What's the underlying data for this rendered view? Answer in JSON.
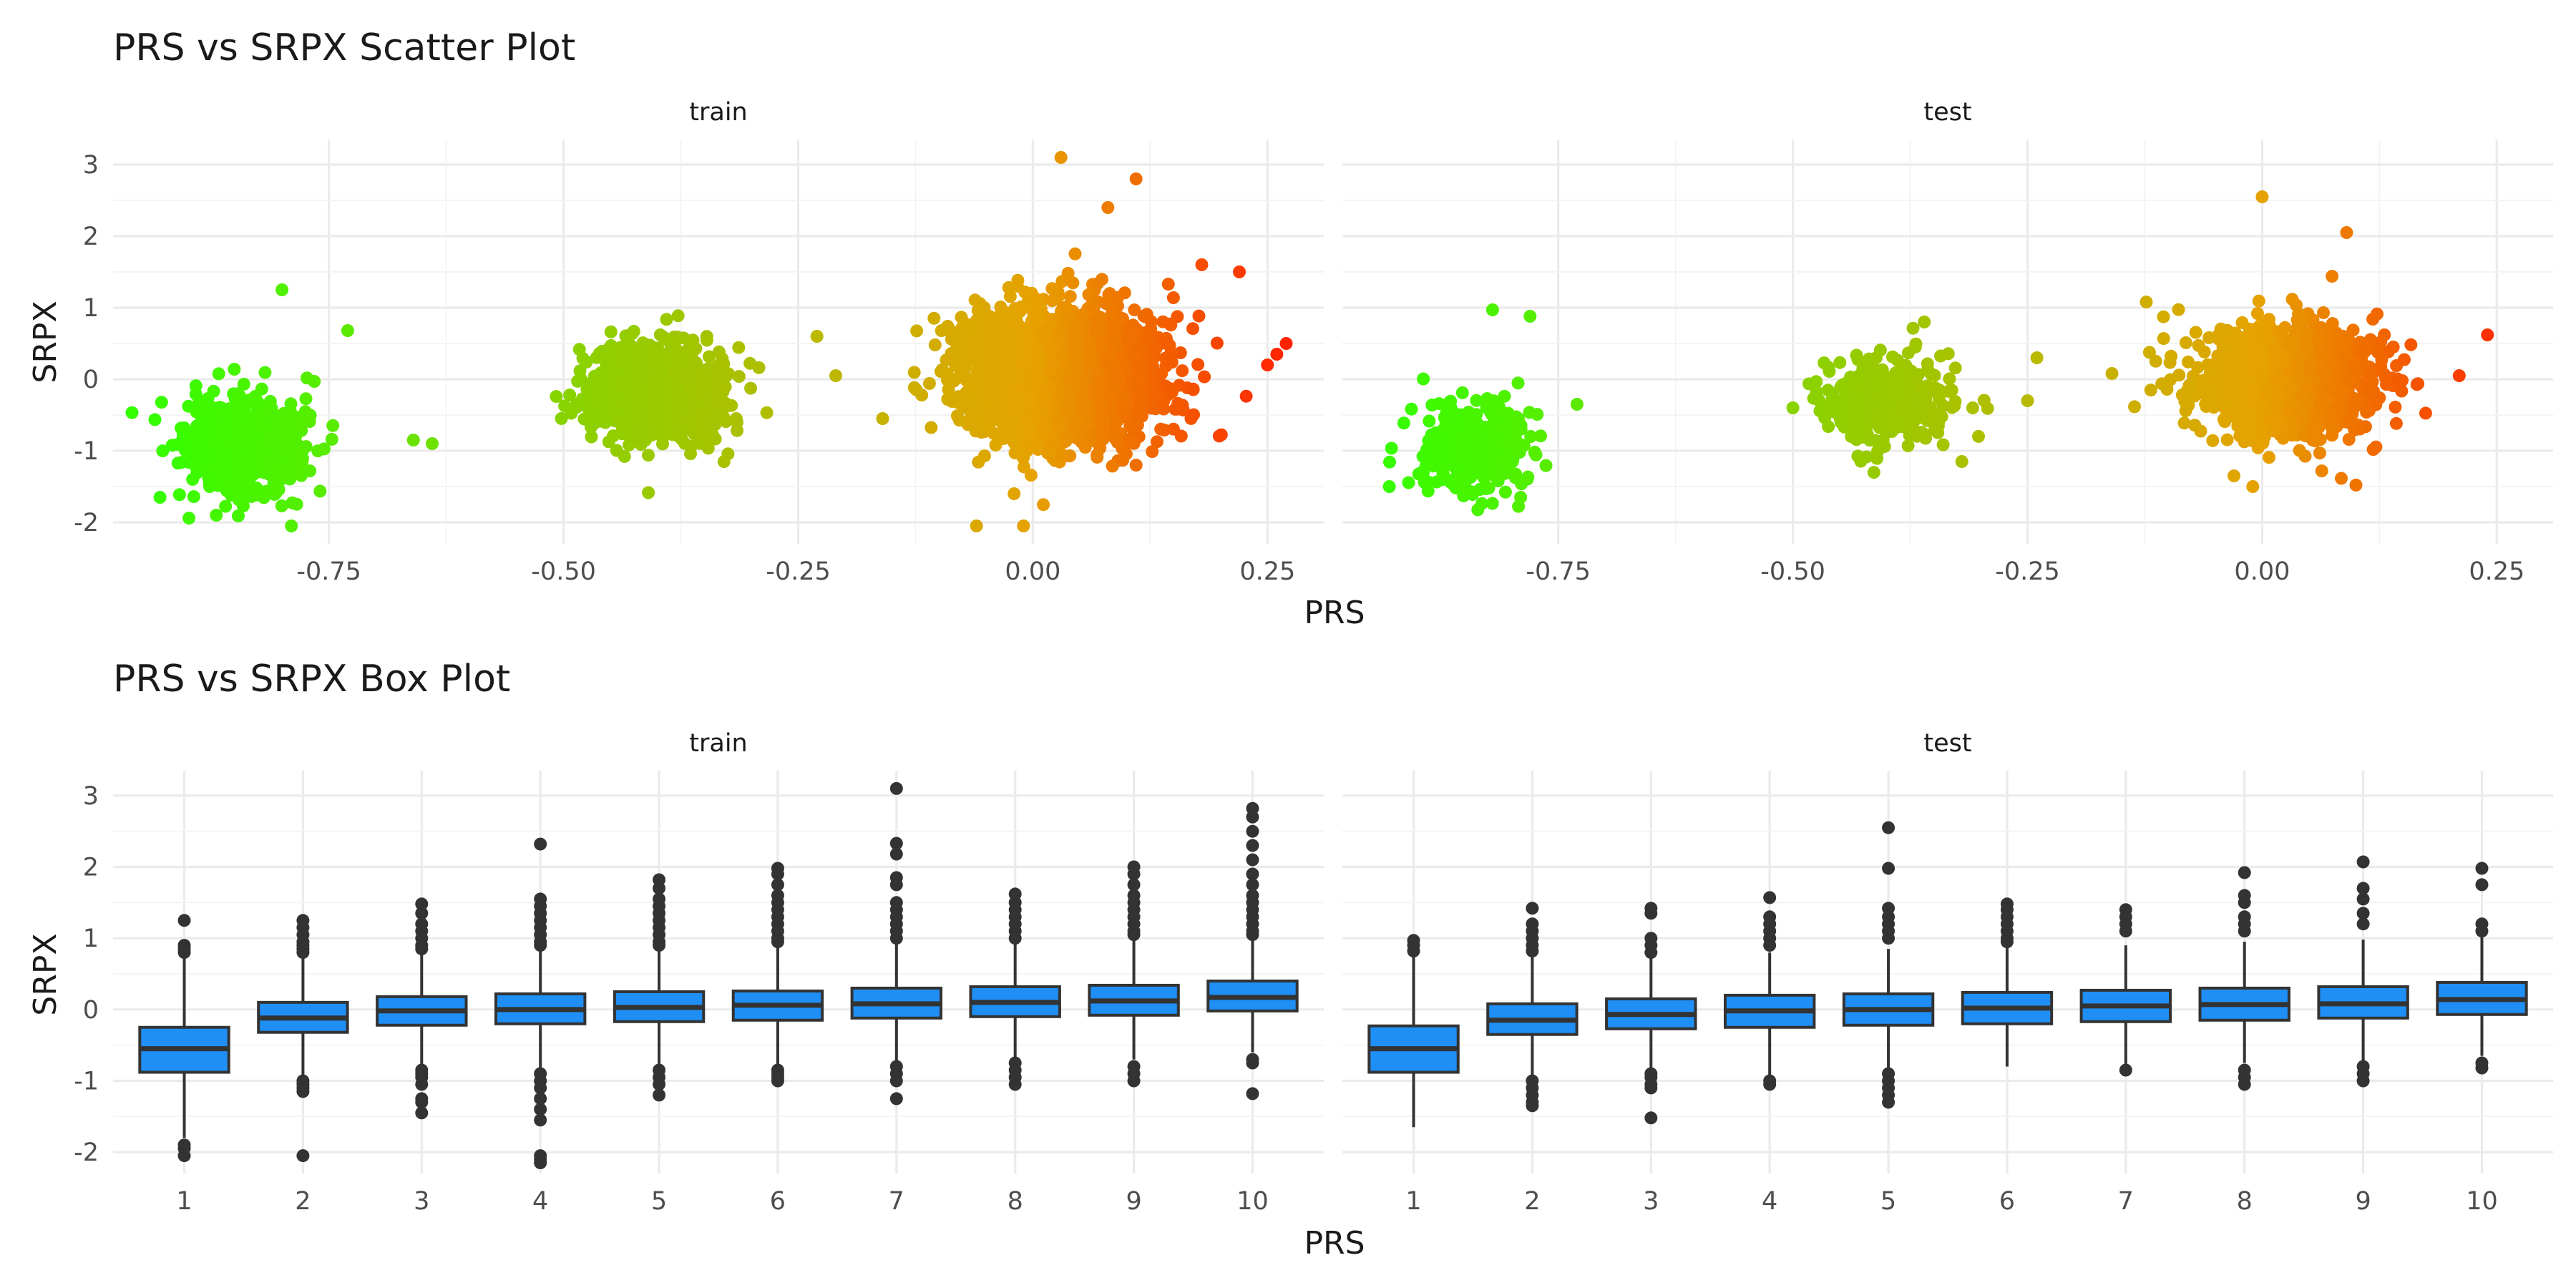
{
  "chart_data": [
    {
      "type": "scatter",
      "title": "PRS vs SRPX Scatter Plot",
      "xlabel": "PRS",
      "ylabel": "SRPX",
      "xlim": [
        -0.98,
        0.31
      ],
      "ylim": [
        -2.3,
        3.35
      ],
      "x_ticks": [
        -0.75,
        -0.5,
        -0.25,
        0.0,
        0.25
      ],
      "x_tick_labels": [
        "-0.75",
        "-0.50",
        "-0.25",
        "0.00",
        "0.25"
      ],
      "y_ticks": [
        -2,
        -1,
        0,
        1,
        2,
        3
      ],
      "y_tick_labels": [
        "-2",
        "-1",
        "0",
        "1",
        "2",
        "3"
      ],
      "grid": true,
      "color_scale": {
        "low": "#33ff00",
        "mid": "#e6a200",
        "high": "#ff2200",
        "note": "points colored by PRS value"
      },
      "panels": [
        {
          "name": "train",
          "clusters": [
            {
              "x_center": -0.84,
              "x_sd": 0.03,
              "y_center": -0.95,
              "y_sd": 0.33,
              "n": 750
            },
            {
              "x_center": -0.4,
              "x_sd": 0.035,
              "y_center": -0.15,
              "y_sd": 0.35,
              "n": 900
            },
            {
              "x_center": 0.03,
              "x_sd": 0.05,
              "y_center": 0.05,
              "y_sd": 0.45,
              "n": 2400
            }
          ],
          "outliers": [
            {
              "x": -0.93,
              "y": -1.65
            },
            {
              "x": -0.8,
              "y": 1.25
            },
            {
              "x": -0.73,
              "y": 0.68
            },
            {
              "x": -0.79,
              "y": -2.05
            },
            {
              "x": -0.87,
              "y": -1.9
            },
            {
              "x": -0.64,
              "y": -0.9
            },
            {
              "x": -0.66,
              "y": -0.85
            },
            {
              "x": -0.23,
              "y": 0.6
            },
            {
              "x": -0.21,
              "y": 0.05
            },
            {
              "x": -0.16,
              "y": -0.55
            },
            {
              "x": 0.03,
              "y": 3.1
            },
            {
              "x": 0.11,
              "y": 2.8
            },
            {
              "x": 0.08,
              "y": 2.4
            },
            {
              "x": 0.18,
              "y": 1.6
            },
            {
              "x": 0.22,
              "y": 1.5
            },
            {
              "x": 0.27,
              "y": 0.5
            },
            {
              "x": 0.26,
              "y": 0.35
            },
            {
              "x": 0.25,
              "y": 0.2
            },
            {
              "x": -0.06,
              "y": -2.05
            },
            {
              "x": -0.01,
              "y": -2.05
            },
            {
              "x": 0.11,
              "y": -1.2
            },
            {
              "x": -0.02,
              "y": -1.6
            }
          ]
        },
        {
          "name": "test",
          "clusters": [
            {
              "x_center": -0.84,
              "x_sd": 0.03,
              "y_center": -0.95,
              "y_sd": 0.32,
              "n": 320
            },
            {
              "x_center": -0.4,
              "x_sd": 0.035,
              "y_center": -0.3,
              "y_sd": 0.28,
              "n": 380
            },
            {
              "x_center": 0.03,
              "x_sd": 0.05,
              "y_center": 0.0,
              "y_sd": 0.4,
              "n": 1100
            }
          ],
          "outliers": [
            {
              "x": -0.82,
              "y": 0.97
            },
            {
              "x": -0.78,
              "y": 0.88
            },
            {
              "x": -0.93,
              "y": -1.5
            },
            {
              "x": -0.79,
              "y": -1.65
            },
            {
              "x": -0.73,
              "y": -0.35
            },
            {
              "x": -0.5,
              "y": -0.4
            },
            {
              "x": -0.24,
              "y": 0.3
            },
            {
              "x": -0.25,
              "y": -0.3
            },
            {
              "x": -0.32,
              "y": -1.15
            },
            {
              "x": -0.36,
              "y": 0.8
            },
            {
              "x": 0.0,
              "y": 2.55
            },
            {
              "x": 0.09,
              "y": 2.05
            },
            {
              "x": -0.16,
              "y": 0.08
            },
            {
              "x": 0.24,
              "y": 0.62
            },
            {
              "x": 0.21,
              "y": 0.05
            },
            {
              "x": -0.03,
              "y": -1.35
            },
            {
              "x": -0.01,
              "y": -1.5
            }
          ]
        }
      ]
    },
    {
      "type": "box",
      "title": "PRS vs SRPX Box Plot",
      "xlabel": "PRS",
      "ylabel": "SRPX",
      "categories": [
        "1",
        "2",
        "3",
        "4",
        "5",
        "6",
        "7",
        "8",
        "9",
        "10"
      ],
      "ylim": [
        -2.3,
        3.35
      ],
      "y_ticks": [
        -2,
        -1,
        0,
        1,
        2,
        3
      ],
      "y_tick_labels": [
        "-2",
        "-1",
        "0",
        "1",
        "2",
        "3"
      ],
      "box_fill": "#1f8ff5",
      "box_edge": "#333333",
      "grid": true,
      "panels": [
        {
          "name": "train",
          "boxes": [
            {
              "q1": -0.88,
              "median": -0.55,
              "q3": -0.25,
              "whisker_low": -1.8,
              "whisker_high": 0.75,
              "outliers": [
                1.25,
                0.9,
                0.85,
                0.8,
                -1.9,
                -1.95,
                -2.05
              ]
            },
            {
              "q1": -0.32,
              "median": -0.12,
              "q3": 0.1,
              "whisker_low": -0.95,
              "whisker_high": 0.72,
              "outliers": [
                1.25,
                1.15,
                1.05,
                0.95,
                0.9,
                0.85,
                0.8,
                -1.0,
                -1.05,
                -1.1,
                -1.15,
                -2.05
              ]
            },
            {
              "q1": -0.22,
              "median": -0.02,
              "q3": 0.18,
              "whisker_low": -0.8,
              "whisker_high": 0.78,
              "outliers": [
                1.48,
                1.35,
                1.2,
                1.1,
                1.0,
                0.9,
                0.85,
                -0.85,
                -0.9,
                -0.95,
                -1.05,
                -1.25,
                -1.3,
                -1.45
              ]
            },
            {
              "q1": -0.2,
              "median": 0.0,
              "q3": 0.22,
              "whisker_low": -0.85,
              "whisker_high": 0.85,
              "outliers": [
                2.32,
                1.55,
                1.45,
                1.35,
                1.25,
                1.15,
                1.05,
                0.95,
                0.9,
                -0.9,
                -1.0,
                -1.1,
                -1.25,
                -1.4,
                -1.55,
                -2.05,
                -2.1,
                -2.15
              ]
            },
            {
              "q1": -0.17,
              "median": 0.03,
              "q3": 0.25,
              "whisker_low": -0.8,
              "whisker_high": 0.85,
              "outliers": [
                1.82,
                1.7,
                1.55,
                1.45,
                1.35,
                1.25,
                1.15,
                1.05,
                0.95,
                0.9,
                -0.85,
                -0.95,
                -1.05,
                -1.2
              ]
            },
            {
              "q1": -0.15,
              "median": 0.06,
              "q3": 0.26,
              "whisker_low": -0.78,
              "whisker_high": 0.88,
              "outliers": [
                1.98,
                1.9,
                1.75,
                1.6,
                1.5,
                1.4,
                1.3,
                1.2,
                1.1,
                1.0,
                0.95,
                -0.85,
                -0.9,
                -0.95,
                -1.0
              ]
            },
            {
              "q1": -0.12,
              "median": 0.08,
              "q3": 0.3,
              "whisker_low": -0.75,
              "whisker_high": 0.92,
              "outliers": [
                3.1,
                2.33,
                2.18,
                1.85,
                1.75,
                1.5,
                1.4,
                1.3,
                1.2,
                1.1,
                1.0,
                -0.8,
                -0.9,
                -1.0,
                -1.25
              ]
            },
            {
              "q1": -0.1,
              "median": 0.1,
              "q3": 0.32,
              "whisker_low": -0.72,
              "whisker_high": 0.95,
              "outliers": [
                1.62,
                1.5,
                1.4,
                1.3,
                1.2,
                1.1,
                1.0,
                -0.75,
                -0.85,
                -0.95,
                -1.05
              ]
            },
            {
              "q1": -0.08,
              "median": 0.12,
              "q3": 0.34,
              "whisker_low": -0.7,
              "whisker_high": 0.98,
              "outliers": [
                2.0,
                1.9,
                1.75,
                1.6,
                1.5,
                1.4,
                1.3,
                1.2,
                1.1,
                1.05,
                -0.8,
                -0.9,
                -1.0
              ]
            },
            {
              "q1": -0.02,
              "median": 0.17,
              "q3": 0.4,
              "whisker_low": -0.6,
              "whisker_high": 1.0,
              "outliers": [
                2.82,
                2.7,
                2.5,
                2.3,
                2.1,
                1.9,
                1.75,
                1.6,
                1.5,
                1.4,
                1.3,
                1.2,
                1.1,
                1.05,
                -0.7,
                -0.75,
                -1.18
              ]
            }
          ]
        },
        {
          "name": "test",
          "boxes": [
            {
              "q1": -0.88,
              "median": -0.55,
              "q3": -0.23,
              "whisker_low": -1.65,
              "whisker_high": 0.75,
              "outliers": [
                0.97,
                0.9,
                0.82
              ]
            },
            {
              "q1": -0.35,
              "median": -0.15,
              "q3": 0.08,
              "whisker_low": -0.95,
              "whisker_high": 0.75,
              "outliers": [
                1.42,
                1.2,
                1.1,
                1.0,
                0.9,
                0.82,
                -1.0,
                -1.1,
                -1.2,
                -1.3,
                -1.35
              ]
            },
            {
              "q1": -0.27,
              "median": -0.07,
              "q3": 0.15,
              "whisker_low": -0.85,
              "whisker_high": 0.75,
              "outliers": [
                1.42,
                1.35,
                1.0,
                0.9,
                0.8,
                -0.9,
                -0.95,
                -1.05,
                -1.1,
                -1.52
              ]
            },
            {
              "q1": -0.25,
              "median": -0.02,
              "q3": 0.2,
              "whisker_low": -0.95,
              "whisker_high": 0.8,
              "outliers": [
                1.57,
                1.3,
                1.2,
                1.1,
                1.0,
                0.9,
                -1.0,
                -1.05
              ]
            },
            {
              "q1": -0.22,
              "median": 0.0,
              "q3": 0.22,
              "whisker_low": -0.85,
              "whisker_high": 0.85,
              "outliers": [
                2.55,
                1.98,
                1.42,
                1.3,
                1.2,
                1.1,
                1.0,
                -0.9,
                -1.0,
                -1.1,
                -1.2,
                -1.3
              ]
            },
            {
              "q1": -0.2,
              "median": 0.02,
              "q3": 0.24,
              "whisker_low": -0.8,
              "whisker_high": 0.9,
              "outliers": [
                1.48,
                1.4,
                1.3,
                1.2,
                1.1,
                1.0,
                0.95
              ]
            },
            {
              "q1": -0.17,
              "median": 0.05,
              "q3": 0.27,
              "whisker_low": -0.8,
              "whisker_high": 0.9,
              "outliers": [
                1.4,
                1.3,
                1.2,
                1.1,
                -0.85
              ]
            },
            {
              "q1": -0.15,
              "median": 0.07,
              "q3": 0.3,
              "whisker_low": -0.75,
              "whisker_high": 0.95,
              "outliers": [
                1.92,
                1.6,
                1.5,
                1.3,
                1.2,
                1.1,
                -0.85,
                -0.95,
                -1.05
              ]
            },
            {
              "q1": -0.12,
              "median": 0.08,
              "q3": 0.32,
              "whisker_low": -0.75,
              "whisker_high": 0.98,
              "outliers": [
                2.07,
                1.7,
                1.55,
                1.35,
                1.2,
                -0.8,
                -0.9,
                -1.0
              ]
            },
            {
              "q1": -0.07,
              "median": 0.14,
              "q3": 0.38,
              "whisker_low": -0.65,
              "whisker_high": 1.05,
              "outliers": [
                1.98,
                1.75,
                1.2,
                1.1,
                -0.75,
                -0.82
              ]
            }
          ]
        }
      ]
    }
  ]
}
